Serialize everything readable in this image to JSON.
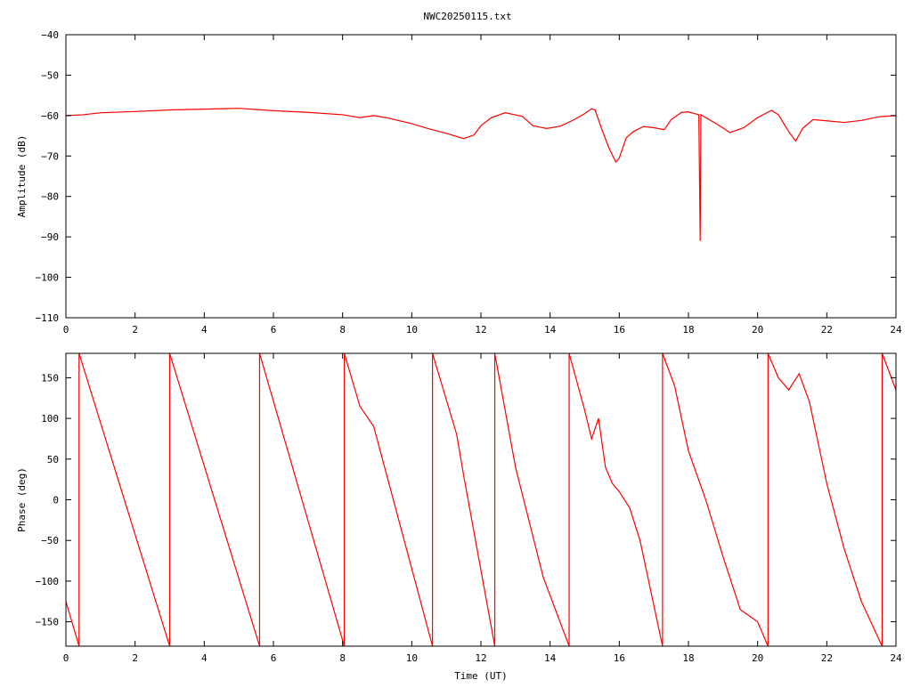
{
  "page": {
    "title": "NWC20250115.txt",
    "line_color": "#ff0000",
    "axis_color": "#000000",
    "background": "#ffffff"
  },
  "chart_data": [
    {
      "type": "line",
      "title": "NWC20250115.txt",
      "xlabel": "",
      "ylabel": "Amplitude (dB)",
      "xlim": [
        0,
        24
      ],
      "ylim": [
        -110,
        -40
      ],
      "xticks": [
        0,
        2,
        4,
        6,
        8,
        10,
        12,
        14,
        16,
        18,
        20,
        22,
        24
      ],
      "yticks": [
        -110,
        -100,
        -90,
        -80,
        -70,
        -60,
        -50,
        -40
      ],
      "xtick_labels": [
        "0",
        "2",
        "4",
        "6",
        "8",
        "10",
        "12",
        "14",
        "16",
        "18",
        "20",
        "22",
        "24"
      ],
      "ytick_labels": [
        "−110",
        "−100",
        "−90",
        "−80",
        "−70",
        "−60",
        "−50",
        "−40"
      ],
      "grid": false,
      "series": [
        {
          "color": "#ff0000",
          "x": [
            0,
            0.5,
            1,
            2,
            3,
            4,
            5,
            6,
            7,
            8,
            8.5,
            8.9,
            9.3,
            10,
            10.5,
            11,
            11.5,
            11.8,
            12,
            12.3,
            12.7,
            13.2,
            13.5,
            13.9,
            14.3,
            14.7,
            15,
            15.2,
            15.3,
            15.5,
            15.7,
            15.9,
            16,
            16.2,
            16.4,
            16.7,
            17,
            17.3,
            17.5,
            17.8,
            18,
            18.3,
            18.34,
            18.36,
            18.5,
            18.9,
            19.2,
            19.6,
            20,
            20.4,
            20.6,
            20.9,
            21.1,
            21.3,
            21.6,
            22,
            22.5,
            23,
            23.5,
            24
          ],
          "y": [
            -60,
            -59.8,
            -59.3,
            -59,
            -58.6,
            -58.4,
            -58.2,
            -58.8,
            -59.2,
            -59.8,
            -60.5,
            -60,
            -60.6,
            -62,
            -63.3,
            -64.4,
            -65.7,
            -64.8,
            -62.5,
            -60.5,
            -59.3,
            -60.2,
            -62.5,
            -63.2,
            -62.6,
            -61,
            -59.5,
            -58.3,
            -58.6,
            -63.5,
            -68,
            -71.5,
            -70.5,
            -65.5,
            -64,
            -62.7,
            -63,
            -63.5,
            -61,
            -59.2,
            -59.1,
            -59.8,
            -91,
            -59.8,
            -60.5,
            -62.5,
            -64.2,
            -63,
            -60.5,
            -58.7,
            -59.8,
            -64,
            -66.3,
            -63.2,
            -61,
            -61.3,
            -61.7,
            -61.2,
            -60.3,
            -60
          ]
        }
      ]
    },
    {
      "type": "line",
      "title": "",
      "xlabel": "Time (UT)",
      "ylabel": "Phase (deg)",
      "xlim": [
        0,
        24
      ],
      "ylim": [
        -180,
        180
      ],
      "xticks": [
        0,
        2,
        4,
        6,
        8,
        10,
        12,
        14,
        16,
        18,
        20,
        22,
        24
      ],
      "yticks": [
        -150,
        -100,
        -50,
        0,
        50,
        100,
        150
      ],
      "xtick_labels": [
        "0",
        "2",
        "4",
        "6",
        "8",
        "10",
        "12",
        "14",
        "16",
        "18",
        "20",
        "22",
        "24"
      ],
      "ytick_labels": [
        "−150",
        "−100",
        "−50",
        "0",
        "50",
        "100",
        "150"
      ],
      "grid": false,
      "series": [
        {
          "color": "#ff0000",
          "x": [
            0,
            0.38,
            0.38,
            3.0,
            3.0,
            5.6,
            5.6,
            8.05,
            8.05,
            8.5,
            8.9,
            10.6,
            10.6,
            11.3,
            11.5,
            12.4,
            12.4,
            13.0,
            13.8,
            14.55,
            14.55,
            15.0,
            15.2,
            15.4,
            15.6,
            15.8,
            16.0,
            16.3,
            16.6,
            17.25,
            17.25,
            17.6,
            18.0,
            18.5,
            19.0,
            19.5,
            20.0,
            20.3,
            20.3,
            20.6,
            20.9,
            21.2,
            21.5,
            22.0,
            22.5,
            23.0,
            23.6,
            23.6,
            24.0
          ],
          "y": [
            -125,
            -180,
            180,
            -180,
            180,
            -180,
            180,
            -180,
            180,
            115,
            90,
            -180,
            180,
            80,
            30,
            -180,
            180,
            40,
            -95,
            -180,
            180,
            110,
            75,
            100,
            40,
            20,
            10,
            -10,
            -50,
            -180,
            180,
            140,
            60,
            0,
            -70,
            -135,
            -150,
            -180,
            180,
            150,
            135,
            155,
            120,
            20,
            -60,
            -125,
            -180,
            180,
            135
          ]
        }
      ]
    }
  ]
}
